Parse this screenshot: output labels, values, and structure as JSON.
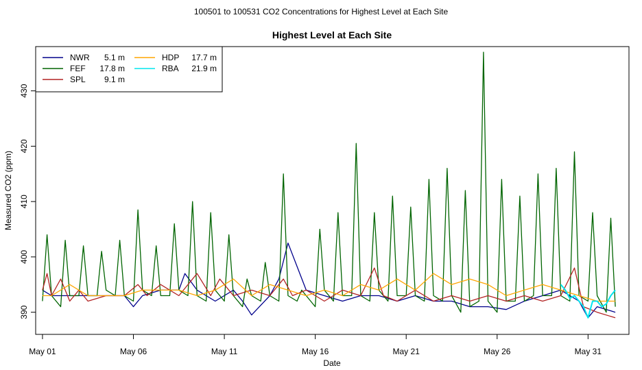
{
  "page": {
    "title": "100501  to  100531 CO2 Concentrations for Highest Level at Each Site"
  },
  "chart_data": {
    "type": "line",
    "title": "Highest Level at Each Site",
    "xlabel": "Date",
    "ylabel": "Measured CO2 (ppm)",
    "xlim": [
      "2010-04-30T15:00",
      "2010-06-02T06:00"
    ],
    "ylim": [
      386,
      438
    ],
    "x_ticks": [
      {
        "date": "2010-05-01",
        "label": "May 01"
      },
      {
        "date": "2010-05-06",
        "label": "May 06"
      },
      {
        "date": "2010-05-11",
        "label": "May 11"
      },
      {
        "date": "2010-05-16",
        "label": "May 16"
      },
      {
        "date": "2010-05-21",
        "label": "May 21"
      },
      {
        "date": "2010-05-26",
        "label": "May 26"
      },
      {
        "date": "2010-05-31",
        "label": "May 31"
      }
    ],
    "y_ticks": [
      390,
      400,
      410,
      420,
      430
    ],
    "grid": false,
    "legend_position": "top-left",
    "series": [
      {
        "name": "NWR",
        "height": "5.1 m",
        "color": "#00008B",
        "x": [
          "2010-05-01T00:00",
          "2010-05-01T12:00",
          "2010-05-02T12:00",
          "2010-05-03T12:00",
          "2010-05-04T12:00",
          "2010-05-05T12:00",
          "2010-05-06T00:00",
          "2010-05-06T12:00",
          "2010-05-07T12:00",
          "2010-05-08T12:00",
          "2010-05-08T20:00",
          "2010-05-09T12:00",
          "2010-05-10T12:00",
          "2010-05-11T12:00",
          "2010-05-12T00:00",
          "2010-05-12T12:00",
          "2010-05-13T12:00",
          "2010-05-14T00:00",
          "2010-05-14T12:00",
          "2010-05-15T12:00",
          "2010-05-16T12:00",
          "2010-05-17T12:00",
          "2010-05-18T12:00",
          "2010-05-19T12:00",
          "2010-05-20T12:00",
          "2010-05-21T12:00",
          "2010-05-22T12:00",
          "2010-05-23T12:00",
          "2010-05-24T12:00",
          "2010-05-25T12:00",
          "2010-05-26T12:00",
          "2010-05-27T12:00",
          "2010-05-28T12:00",
          "2010-05-29T12:00",
          "2010-05-30T12:00",
          "2010-05-31T00:00",
          "2010-05-31T12:00",
          "2010-06-01T12:00"
        ],
        "y": [
          394,
          393,
          393,
          393,
          393,
          393,
          391,
          393,
          394,
          394,
          397,
          394,
          392,
          394,
          392,
          389.5,
          393,
          396,
          402.5,
          394,
          393,
          392,
          393,
          393,
          392,
          393,
          392,
          392,
          391,
          391,
          390.5,
          392,
          393,
          394,
          392,
          389,
          391,
          390
        ]
      },
      {
        "name": "FEF",
        "height": "17.8 m",
        "color": "#006400",
        "x": [
          "2010-05-01T00:00",
          "2010-05-01T06:00",
          "2010-05-01T12:00",
          "2010-05-02T00:00",
          "2010-05-02T06:00",
          "2010-05-02T12:00",
          "2010-05-03T00:00",
          "2010-05-03T06:00",
          "2010-05-03T12:00",
          "2010-05-04T00:00",
          "2010-05-04T06:00",
          "2010-05-04T12:00",
          "2010-05-05T00:00",
          "2010-05-05T06:00",
          "2010-05-05T12:00",
          "2010-05-06T00:00",
          "2010-05-06T06:00",
          "2010-05-06T12:00",
          "2010-05-07T00:00",
          "2010-05-07T06:00",
          "2010-05-07T12:00",
          "2010-05-08T00:00",
          "2010-05-08T06:00",
          "2010-05-08T12:00",
          "2010-05-09T00:00",
          "2010-05-09T06:00",
          "2010-05-09T12:00",
          "2010-05-10T00:00",
          "2010-05-10T06:00",
          "2010-05-10T12:00",
          "2010-05-11T00:00",
          "2010-05-11T06:00",
          "2010-05-11T12:00",
          "2010-05-12T00:00",
          "2010-05-12T06:00",
          "2010-05-12T12:00",
          "2010-05-13T00:00",
          "2010-05-13T06:00",
          "2010-05-13T12:00",
          "2010-05-14T00:00",
          "2010-05-14T06:00",
          "2010-05-14T12:00",
          "2010-05-15T00:00",
          "2010-05-15T06:00",
          "2010-05-15T12:00",
          "2010-05-16T00:00",
          "2010-05-16T06:00",
          "2010-05-16T12:00",
          "2010-05-17T00:00",
          "2010-05-17T06:00",
          "2010-05-17T12:00",
          "2010-05-18T00:00",
          "2010-05-18T06:00",
          "2010-05-18T12:00",
          "2010-05-19T00:00",
          "2010-05-19T06:00",
          "2010-05-19T12:00",
          "2010-05-20T00:00",
          "2010-05-20T06:00",
          "2010-05-20T12:00",
          "2010-05-21T00:00",
          "2010-05-21T06:00",
          "2010-05-21T12:00",
          "2010-05-22T00:00",
          "2010-05-22T06:00",
          "2010-05-22T12:00",
          "2010-05-23T00:00",
          "2010-05-23T06:00",
          "2010-05-23T12:00",
          "2010-05-24T00:00",
          "2010-05-24T06:00",
          "2010-05-24T12:00",
          "2010-05-25T00:00",
          "2010-05-25T06:00",
          "2010-05-25T12:00",
          "2010-05-26T00:00",
          "2010-05-26T06:00",
          "2010-05-26T12:00",
          "2010-05-27T00:00",
          "2010-05-27T06:00",
          "2010-05-27T12:00",
          "2010-05-28T00:00",
          "2010-05-28T06:00",
          "2010-05-28T12:00",
          "2010-05-29T00:00",
          "2010-05-29T06:00",
          "2010-05-29T12:00",
          "2010-05-30T00:00",
          "2010-05-30T06:00",
          "2010-05-30T12:00",
          "2010-05-31T00:00",
          "2010-05-31T06:00",
          "2010-05-31T12:00",
          "2010-06-01T00:00",
          "2010-06-01T06:00",
          "2010-06-01T12:00"
        ],
        "y": [
          392,
          404,
          393,
          391,
          403,
          393,
          393,
          402,
          393,
          393,
          401,
          394,
          393,
          403,
          393,
          392,
          408.5,
          394,
          393,
          402,
          393,
          393,
          406,
          394,
          393,
          410,
          393,
          392,
          408,
          394,
          392,
          404,
          393,
          391,
          396,
          393,
          392,
          399,
          393,
          392,
          415,
          393,
          392,
          394,
          393,
          391,
          405,
          394,
          392,
          408,
          393,
          393,
          420.5,
          393,
          392,
          408,
          394,
          392,
          411,
          393,
          393,
          409,
          393,
          392,
          414,
          393,
          392,
          416,
          393,
          390,
          412,
          391,
          392,
          437,
          392,
          390,
          414,
          392,
          392,
          411,
          392,
          393,
          415,
          393,
          393,
          416,
          393,
          392,
          419,
          393,
          392,
          408,
          393,
          390,
          407,
          391
        ]
      },
      {
        "name": "SPL",
        "height": "9.1 m",
        "color": "#B22222",
        "x": [
          "2010-05-01T00:00",
          "2010-05-01T06:00",
          "2010-05-01T12:00",
          "2010-05-02T00:00",
          "2010-05-02T12:00",
          "2010-05-03T00:00",
          "2010-05-03T12:00",
          "2010-05-04T12:00",
          "2010-05-05T12:00",
          "2010-05-06T06:00",
          "2010-05-06T18:00",
          "2010-05-07T12:00",
          "2010-05-08T12:00",
          "2010-05-09T12:00",
          "2010-05-10T06:00",
          "2010-05-10T18:00",
          "2010-05-11T12:00",
          "2010-05-12T12:00",
          "2010-05-13T12:00",
          "2010-05-14T06:00",
          "2010-05-14T18:00",
          "2010-05-15T12:00",
          "2010-05-16T12:00",
          "2010-05-17T12:00",
          "2010-05-18T12:00",
          "2010-05-19T06:00",
          "2010-05-19T18:00",
          "2010-05-20T12:00",
          "2010-05-21T12:00",
          "2010-05-22T12:00",
          "2010-05-23T12:00",
          "2010-05-24T12:00",
          "2010-05-25T12:00",
          "2010-05-26T12:00",
          "2010-05-27T12:00",
          "2010-05-28T12:00",
          "2010-05-29T12:00",
          "2010-05-30T06:00",
          "2010-05-30T18:00",
          "2010-05-31T12:00",
          "2010-06-01T12:00"
        ],
        "y": [
          394,
          397,
          393,
          396,
          392,
          394,
          392,
          393,
          393,
          395,
          393,
          395,
          393,
          397,
          393,
          396,
          393,
          394,
          393,
          396,
          393,
          394,
          392,
          394,
          393,
          398,
          393,
          392,
          394,
          392,
          393,
          392,
          393,
          392,
          393,
          392,
          393,
          398,
          391,
          390,
          389
        ]
      },
      {
        "name": "HDP",
        "height": "17.7 m",
        "color": "#FFA500",
        "x": [
          "2010-05-01T00:00",
          "2010-05-01T12:00",
          "2010-05-02T12:00",
          "2010-05-03T12:00",
          "2010-05-04T12:00",
          "2010-05-05T12:00",
          "2010-05-06T12:00",
          "2010-05-07T12:00",
          "2010-05-08T12:00",
          "2010-05-09T12:00",
          "2010-05-10T12:00",
          "2010-05-11T12:00",
          "2010-05-12T12:00",
          "2010-05-13T12:00",
          "2010-05-14T12:00",
          "2010-05-15T12:00",
          "2010-05-16T12:00",
          "2010-05-17T12:00",
          "2010-05-18T12:00",
          "2010-05-19T12:00",
          "2010-05-20T12:00",
          "2010-05-21T12:00",
          "2010-05-22T12:00",
          "2010-05-23T12:00",
          "2010-05-24T12:00",
          "2010-05-25T12:00",
          "2010-05-26T12:00",
          "2010-05-27T12:00",
          "2010-05-28T12:00",
          "2010-05-29T12:00",
          "2010-05-30T12:00",
          "2010-05-31T12:00",
          "2010-06-01T12:00"
        ],
        "y": [
          393,
          393,
          395,
          393,
          393,
          393,
          394,
          394,
          394,
          393,
          394,
          396,
          393,
          395,
          394,
          393,
          394,
          393,
          395,
          394,
          396,
          394,
          397,
          395,
          396,
          395,
          393,
          394,
          395,
          394,
          393,
          392,
          392
        ]
      },
      {
        "name": "RBA",
        "height": "21.9 m",
        "color": "#00E5EE",
        "x": [
          "2010-05-29T12:00",
          "2010-05-29T18:00",
          "2010-05-30T00:00",
          "2010-05-30T06:00",
          "2010-05-30T12:00",
          "2010-05-30T18:00",
          "2010-05-31T00:00",
          "2010-05-31T06:00",
          "2010-05-31T12:00",
          "2010-05-31T18:00",
          "2010-06-01T00:00",
          "2010-06-01T06:00",
          "2010-06-01T12:00"
        ],
        "y": [
          395,
          394,
          392.5,
          393,
          392,
          391,
          389,
          392,
          392,
          391,
          391.5,
          393,
          394
        ]
      }
    ]
  }
}
